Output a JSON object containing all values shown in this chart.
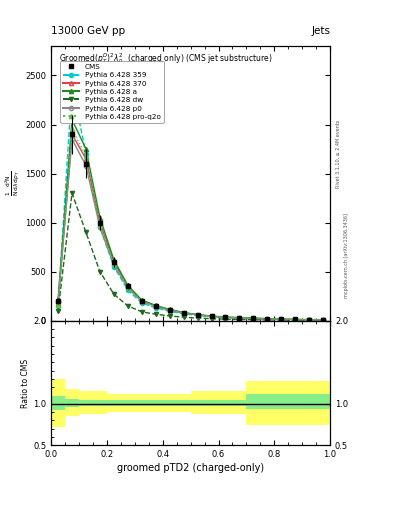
{
  "title_left": "13000 GeV pp",
  "title_right": "Jets",
  "main_title": "Groomed$(p_T^D)^2\\lambda_0^2$  (charged only) (CMS jet substructure)",
  "xlabel": "groomed pTD2 (charged-only)",
  "rivet_label": "Rivet 3.1.10, ≥ 2.4M events",
  "arxiv_label": "mcplots.cern.ch [arXiv:1306.3436]",
  "x": [
    0.025,
    0.075,
    0.125,
    0.175,
    0.225,
    0.275,
    0.325,
    0.375,
    0.425,
    0.475,
    0.525,
    0.575,
    0.625,
    0.675,
    0.725,
    0.775,
    0.825,
    0.875,
    0.925,
    0.975
  ],
  "cms_y": [
    200,
    1900,
    1600,
    1000,
    600,
    350,
    200,
    150,
    110,
    80,
    60,
    45,
    35,
    30,
    25,
    20,
    15,
    12,
    10,
    8
  ],
  "cms_yerr": [
    30,
    200,
    150,
    80,
    50,
    30,
    20,
    15,
    10,
    8,
    6,
    5,
    4,
    3,
    3,
    2,
    2,
    2,
    1,
    1
  ],
  "p359_y": [
    150,
    2400,
    1700,
    950,
    550,
    310,
    180,
    130,
    95,
    70,
    52,
    40,
    30,
    25,
    20,
    16,
    13,
    10,
    8,
    6
  ],
  "p370_y": [
    180,
    1900,
    1650,
    1000,
    600,
    350,
    205,
    150,
    110,
    80,
    60,
    45,
    35,
    30,
    25,
    20,
    15,
    12,
    10,
    8
  ],
  "pa_y": [
    220,
    2050,
    1750,
    1050,
    620,
    360,
    210,
    155,
    115,
    82,
    62,
    47,
    36,
    30,
    25,
    20,
    15,
    12,
    10,
    8
  ],
  "pdw_y": [
    100,
    1300,
    900,
    500,
    270,
    150,
    90,
    65,
    48,
    35,
    26,
    20,
    15,
    12,
    10,
    8,
    6,
    5,
    4,
    3
  ],
  "pp0_y": [
    190,
    1850,
    1580,
    950,
    570,
    330,
    195,
    143,
    105,
    76,
    57,
    43,
    33,
    28,
    23,
    18,
    14,
    11,
    9,
    7
  ],
  "pq2o_y": [
    160,
    1950,
    1680,
    980,
    580,
    340,
    200,
    148,
    108,
    79,
    59,
    44,
    34,
    29,
    24,
    19,
    14,
    11,
    9,
    7
  ],
  "colors": {
    "p359": "#00cccc",
    "p370": "#dd4444",
    "pa": "#228822",
    "pdw": "#226622",
    "pp0": "#888888",
    "pq2o": "#44cc44"
  },
  "ratio_x_edges": [
    0.0,
    0.05,
    0.1,
    0.15,
    0.2,
    0.25,
    0.3,
    0.35,
    0.4,
    0.45,
    0.5,
    0.55,
    0.6,
    0.65,
    0.7,
    0.75,
    0.8,
    0.85,
    0.9,
    0.95,
    1.0
  ],
  "green_band_lo": [
    0.92,
    0.96,
    0.97,
    0.97,
    0.97,
    0.97,
    0.97,
    0.97,
    0.97,
    0.97,
    0.97,
    0.97,
    0.97,
    0.97,
    0.94,
    0.94,
    0.94,
    0.94,
    0.94,
    0.94
  ],
  "green_band_hi": [
    1.1,
    1.06,
    1.05,
    1.05,
    1.05,
    1.05,
    1.05,
    1.05,
    1.05,
    1.05,
    1.05,
    1.05,
    1.05,
    1.05,
    1.12,
    1.12,
    1.12,
    1.12,
    1.12,
    1.12
  ],
  "yellow_band_lo": [
    0.72,
    0.85,
    0.88,
    0.88,
    0.9,
    0.9,
    0.9,
    0.9,
    0.9,
    0.9,
    0.88,
    0.88,
    0.88,
    0.88,
    0.75,
    0.75,
    0.75,
    0.75,
    0.75,
    0.75
  ],
  "yellow_band_hi": [
    1.3,
    1.18,
    1.15,
    1.15,
    1.12,
    1.12,
    1.12,
    1.12,
    1.12,
    1.12,
    1.15,
    1.15,
    1.15,
    1.15,
    1.28,
    1.28,
    1.28,
    1.28,
    1.28,
    1.28
  ],
  "xlim": [
    0.0,
    1.0
  ],
  "ylim_main": [
    0,
    2800
  ],
  "ylim_ratio": [
    0.5,
    2.0
  ],
  "yticks_main": [
    0,
    500,
    1000,
    1500,
    2000,
    2500
  ],
  "yticks_ratio": [
    0.5,
    1.0,
    2.0
  ]
}
